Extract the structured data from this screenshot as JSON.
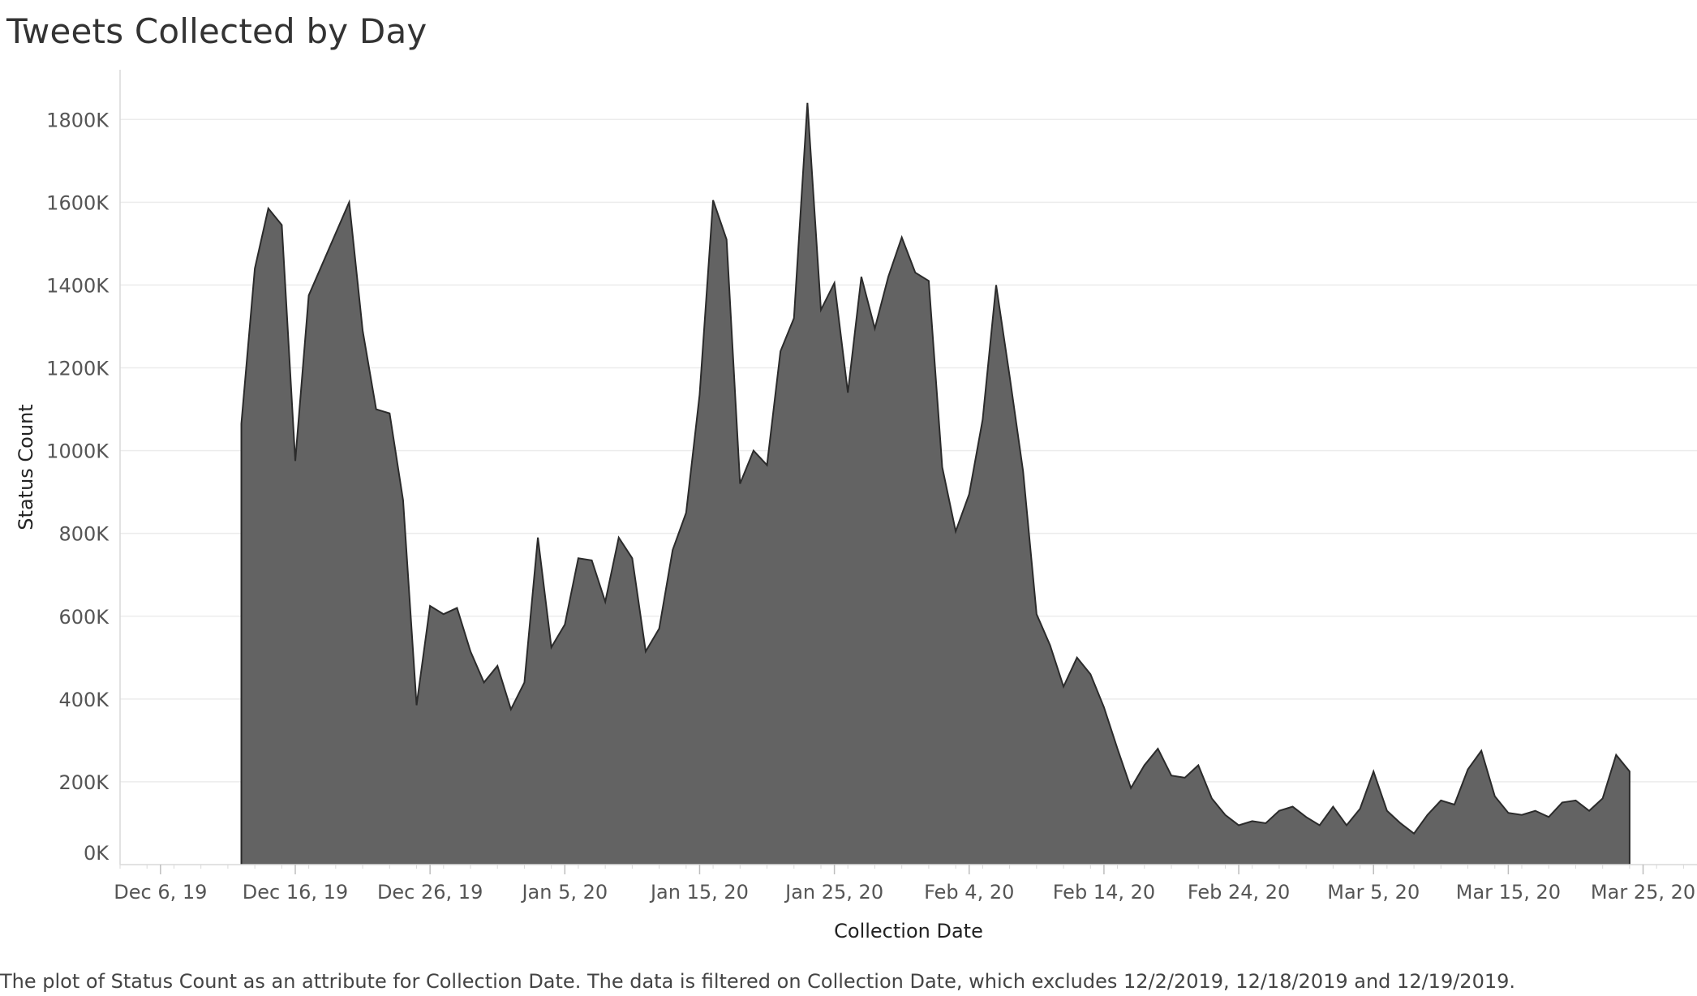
{
  "title": "Tweets Collected by Day",
  "caption": "The plot of Status Count as an attribute for Collection Date. The data is filtered on Collection Date, which excludes 12/2/2019, 12/18/2019 and 12/19/2019.",
  "colors": {
    "area_fill": "#636363",
    "area_stroke": "#2b2b2b",
    "grid": "#ececec",
    "axis": "#d9d9d9"
  },
  "chart_data": {
    "type": "area",
    "title": "Tweets Collected by Day",
    "xlabel": "Collection Date",
    "ylabel": "Status Count",
    "xlim": [
      "2019-12-03",
      "2020-03-29"
    ],
    "ylim": [
      0,
      1920000
    ],
    "grid": true,
    "legend": "none",
    "y_ticks": [
      {
        "value": 0,
        "label": "0K"
      },
      {
        "value": 200000,
        "label": "200K"
      },
      {
        "value": 400000,
        "label": "400K"
      },
      {
        "value": 600000,
        "label": "600K"
      },
      {
        "value": 800000,
        "label": "800K"
      },
      {
        "value": 1000000,
        "label": "1000K"
      },
      {
        "value": 1200000,
        "label": "1200K"
      },
      {
        "value": 1400000,
        "label": "1400K"
      },
      {
        "value": 1600000,
        "label": "1600K"
      },
      {
        "value": 1800000,
        "label": "1800K"
      }
    ],
    "x_ticks": [
      {
        "date": "2019-12-06",
        "label": "Dec 6, 19"
      },
      {
        "date": "2019-12-16",
        "label": "Dec 16, 19"
      },
      {
        "date": "2019-12-26",
        "label": "Dec 26, 19"
      },
      {
        "date": "2020-01-05",
        "label": "Jan 5, 20"
      },
      {
        "date": "2020-01-15",
        "label": "Jan 15, 20"
      },
      {
        "date": "2020-01-25",
        "label": "Jan 25, 20"
      },
      {
        "date": "2020-02-04",
        "label": "Feb 4, 20"
      },
      {
        "date": "2020-02-14",
        "label": "Feb 14, 20"
      },
      {
        "date": "2020-02-24",
        "label": "Feb 24, 20"
      },
      {
        "date": "2020-03-05",
        "label": "Mar 5, 20"
      },
      {
        "date": "2020-03-15",
        "label": "Mar 15, 20"
      },
      {
        "date": "2020-03-25",
        "label": "Mar 25, 20"
      }
    ],
    "series": [
      {
        "points": [
          {
            "date": "2019-12-12",
            "value": 1065000
          },
          {
            "date": "2019-12-13",
            "value": 1440000
          },
          {
            "date": "2019-12-14",
            "value": 1585000
          },
          {
            "date": "2019-12-15",
            "value": 1545000
          },
          {
            "date": "2019-12-16",
            "value": 975000
          },
          {
            "date": "2019-12-17",
            "value": 1375000
          },
          {
            "date": "2019-12-20",
            "value": 1600000
          },
          {
            "date": "2019-12-21",
            "value": 1290000
          },
          {
            "date": "2019-12-22",
            "value": 1100000
          },
          {
            "date": "2019-12-23",
            "value": 1090000
          },
          {
            "date": "2019-12-24",
            "value": 880000
          },
          {
            "date": "2019-12-25",
            "value": 385000
          },
          {
            "date": "2019-12-26",
            "value": 625000
          },
          {
            "date": "2019-12-27",
            "value": 605000
          },
          {
            "date": "2019-12-28",
            "value": 620000
          },
          {
            "date": "2019-12-29",
            "value": 515000
          },
          {
            "date": "2019-12-30",
            "value": 440000
          },
          {
            "date": "2019-12-31",
            "value": 480000
          },
          {
            "date": "2020-01-01",
            "value": 375000
          },
          {
            "date": "2020-01-02",
            "value": 440000
          },
          {
            "date": "2020-01-03",
            "value": 790000
          },
          {
            "date": "2020-01-04",
            "value": 525000
          },
          {
            "date": "2020-01-05",
            "value": 580000
          },
          {
            "date": "2020-01-06",
            "value": 740000
          },
          {
            "date": "2020-01-07",
            "value": 735000
          },
          {
            "date": "2020-01-08",
            "value": 635000
          },
          {
            "date": "2020-01-09",
            "value": 790000
          },
          {
            "date": "2020-01-10",
            "value": 740000
          },
          {
            "date": "2020-01-11",
            "value": 515000
          },
          {
            "date": "2020-01-12",
            "value": 570000
          },
          {
            "date": "2020-01-13",
            "value": 760000
          },
          {
            "date": "2020-01-14",
            "value": 850000
          },
          {
            "date": "2020-01-15",
            "value": 1135000
          },
          {
            "date": "2020-01-16",
            "value": 1605000
          },
          {
            "date": "2020-01-17",
            "value": 1510000
          },
          {
            "date": "2020-01-18",
            "value": 920000
          },
          {
            "date": "2020-01-19",
            "value": 1000000
          },
          {
            "date": "2020-01-20",
            "value": 965000
          },
          {
            "date": "2020-01-21",
            "value": 1240000
          },
          {
            "date": "2020-01-22",
            "value": 1320000
          },
          {
            "date": "2020-01-23",
            "value": 1840000
          },
          {
            "date": "2020-01-24",
            "value": 1340000
          },
          {
            "date": "2020-01-25",
            "value": 1405000
          },
          {
            "date": "2020-01-26",
            "value": 1140000
          },
          {
            "date": "2020-01-27",
            "value": 1420000
          },
          {
            "date": "2020-01-28",
            "value": 1295000
          },
          {
            "date": "2020-01-29",
            "value": 1420000
          },
          {
            "date": "2020-01-30",
            "value": 1515000
          },
          {
            "date": "2020-01-31",
            "value": 1430000
          },
          {
            "date": "2020-02-01",
            "value": 1410000
          },
          {
            "date": "2020-02-02",
            "value": 960000
          },
          {
            "date": "2020-02-03",
            "value": 805000
          },
          {
            "date": "2020-02-04",
            "value": 895000
          },
          {
            "date": "2020-02-05",
            "value": 1075000
          },
          {
            "date": "2020-02-06",
            "value": 1400000
          },
          {
            "date": "2020-02-07",
            "value": 1180000
          },
          {
            "date": "2020-02-08",
            "value": 950000
          },
          {
            "date": "2020-02-09",
            "value": 605000
          },
          {
            "date": "2020-02-10",
            "value": 530000
          },
          {
            "date": "2020-02-11",
            "value": 430000
          },
          {
            "date": "2020-02-12",
            "value": 500000
          },
          {
            "date": "2020-02-13",
            "value": 460000
          },
          {
            "date": "2020-02-14",
            "value": 380000
          },
          {
            "date": "2020-02-15",
            "value": 280000
          },
          {
            "date": "2020-02-16",
            "value": 185000
          },
          {
            "date": "2020-02-17",
            "value": 240000
          },
          {
            "date": "2020-02-18",
            "value": 280000
          },
          {
            "date": "2020-02-19",
            "value": 215000
          },
          {
            "date": "2020-02-20",
            "value": 210000
          },
          {
            "date": "2020-02-21",
            "value": 240000
          },
          {
            "date": "2020-02-22",
            "value": 160000
          },
          {
            "date": "2020-02-23",
            "value": 120000
          },
          {
            "date": "2020-02-24",
            "value": 95000
          },
          {
            "date": "2020-02-25",
            "value": 105000
          },
          {
            "date": "2020-02-26",
            "value": 100000
          },
          {
            "date": "2020-02-27",
            "value": 130000
          },
          {
            "date": "2020-02-28",
            "value": 140000
          },
          {
            "date": "2020-02-29",
            "value": 115000
          },
          {
            "date": "2020-03-01",
            "value": 95000
          },
          {
            "date": "2020-03-02",
            "value": 140000
          },
          {
            "date": "2020-03-03",
            "value": 95000
          },
          {
            "date": "2020-03-04",
            "value": 135000
          },
          {
            "date": "2020-03-05",
            "value": 225000
          },
          {
            "date": "2020-03-06",
            "value": 130000
          },
          {
            "date": "2020-03-07",
            "value": 100000
          },
          {
            "date": "2020-03-08",
            "value": 75000
          },
          {
            "date": "2020-03-09",
            "value": 120000
          },
          {
            "date": "2020-03-10",
            "value": 155000
          },
          {
            "date": "2020-03-11",
            "value": 145000
          },
          {
            "date": "2020-03-12",
            "value": 230000
          },
          {
            "date": "2020-03-13",
            "value": 275000
          },
          {
            "date": "2020-03-14",
            "value": 165000
          },
          {
            "date": "2020-03-15",
            "value": 125000
          },
          {
            "date": "2020-03-16",
            "value": 120000
          },
          {
            "date": "2020-03-17",
            "value": 130000
          },
          {
            "date": "2020-03-18",
            "value": 115000
          },
          {
            "date": "2020-03-19",
            "value": 150000
          },
          {
            "date": "2020-03-20",
            "value": 155000
          },
          {
            "date": "2020-03-21",
            "value": 130000
          },
          {
            "date": "2020-03-22",
            "value": 160000
          },
          {
            "date": "2020-03-23",
            "value": 265000
          },
          {
            "date": "2020-03-24",
            "value": 225000
          }
        ]
      }
    ]
  }
}
